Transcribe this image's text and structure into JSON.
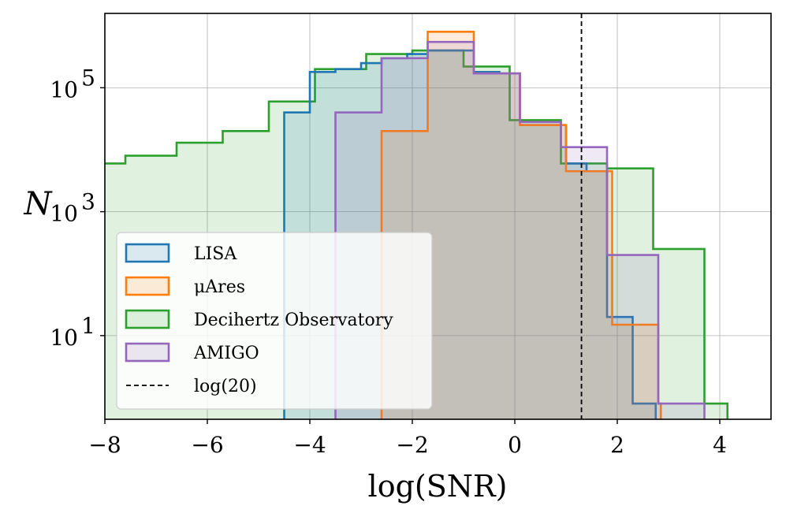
{
  "chart_data": {
    "type": "histogram",
    "xlabel": "log(SNR)",
    "ylabel": "N",
    "xlim": [
      -8,
      5
    ],
    "ylim_log10": [
      -0.35,
      6.2
    ],
    "yscale": "log",
    "grid": true,
    "legend_placement": "lower-left",
    "xticks": [
      {
        "value": -8,
        "label": "−8"
      },
      {
        "value": -6,
        "label": "−6"
      },
      {
        "value": -4,
        "label": "−4"
      },
      {
        "value": -2,
        "label": "−2"
      },
      {
        "value": 0,
        "label": "0"
      },
      {
        "value": 2,
        "label": "2"
      },
      {
        "value": 4,
        "label": "4"
      }
    ],
    "yticks": [
      {
        "value": 10,
        "base": "10",
        "exp": "1"
      },
      {
        "value": 1000,
        "base": "10",
        "exp": "3"
      },
      {
        "value": 100000,
        "base": "10",
        "exp": "5"
      }
    ],
    "reference_line": {
      "x": 1.301,
      "label": "log(20)",
      "color": "#000000",
      "style": "dashed"
    },
    "series": [
      {
        "name": "Decihertz Observatory",
        "color": "#2ca02c",
        "fill": "#2ca02c",
        "fill_opacity": 0.15,
        "edges": [
          -8.6,
          -7.6,
          -6.6,
          -5.7,
          -4.8,
          -3.9,
          -2.9,
          -2.0,
          -1.0,
          -0.1,
          0.9,
          1.8,
          2.7,
          3.7
        ],
        "counts": [
          6000,
          8000,
          13000,
          20000,
          60000,
          200000,
          350000,
          400000,
          220000,
          30000,
          6000,
          5000,
          250,
          0.8
        ],
        "edge_end": 4.15
      },
      {
        "name": "LISA",
        "color": "#1f77b4",
        "fill": "#1f77b4",
        "fill_opacity": 0.15,
        "edges": [
          -4.5,
          -4.0,
          -3.5,
          -3.0,
          -2.6,
          -2.1,
          -1.7,
          -1.2,
          -0.8,
          -0.3,
          0.1,
          0.5,
          1.0,
          1.4,
          1.8,
          2.3
        ],
        "counts": [
          40000,
          180000,
          200000,
          250000,
          300000,
          350000,
          400000,
          400000,
          180000,
          170000,
          25000,
          25000,
          6000,
          4500,
          20,
          0.8
        ],
        "edge_end": 2.75
      },
      {
        "name": "μAres",
        "color": "#ff7f0e",
        "fill": "#ff7f0e",
        "fill_opacity": 0.15,
        "edges": [
          -2.6,
          -1.7,
          -0.8,
          0.1,
          1.0,
          1.9,
          2.8
        ],
        "counts": [
          20000,
          800000,
          170000,
          25000,
          4500,
          15,
          0.8
        ],
        "edge_end": 2.85
      },
      {
        "name": "AMIGO",
        "color": "#9467bd",
        "fill": "#9467bd",
        "fill_opacity": 0.15,
        "edges": [
          -3.5,
          -2.6,
          -1.7,
          -0.8,
          0.1,
          0.9,
          1.8,
          2.8
        ],
        "counts": [
          40000,
          300000,
          550000,
          170000,
          28000,
          11000,
          200,
          0.8
        ],
        "edge_end": 3.7
      }
    ],
    "legend": [
      {
        "label": "LISA",
        "color": "#1f77b4",
        "kind": "patch"
      },
      {
        "label": "μAres",
        "color": "#ff7f0e",
        "kind": "patch"
      },
      {
        "label": "Decihertz Observatory",
        "color": "#2ca02c",
        "kind": "patch"
      },
      {
        "label": "AMIGO",
        "color": "#9467bd",
        "kind": "patch"
      },
      {
        "label": "log(20)",
        "color": "#000000",
        "kind": "dashed"
      }
    ]
  }
}
